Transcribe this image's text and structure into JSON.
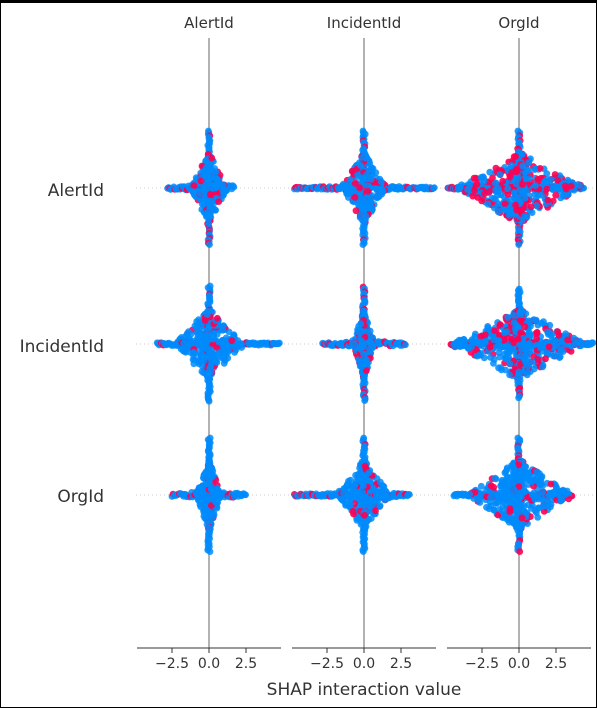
{
  "chart_data": {
    "type": "scatter",
    "subtype": "shap-interaction-summary-beeswarm",
    "xlabel": "SHAP interaction value",
    "column_features": [
      "AlertId",
      "IncidentId",
      "OrgId"
    ],
    "row_features": [
      "AlertId",
      "IncidentId",
      "OrgId"
    ],
    "x_ticks": [
      -2.5,
      0.0,
      2.5
    ],
    "x_tick_labels": [
      "−2.5",
      "0.0",
      "2.5"
    ],
    "xlim": [
      -4.8,
      5.0
    ],
    "colors": {
      "low_value": "#008bfb",
      "high_value": "#ff0052",
      "zero_line": "#999999",
      "axis": "#333333"
    },
    "panels": [
      {
        "row": "AlertId",
        "col": "AlertId",
        "x_range": [
          -2.8,
          1.7
        ],
        "spine_half_height": 57,
        "core_width": 0.9,
        "high_fraction": 0.2
      },
      {
        "row": "AlertId",
        "col": "IncidentId",
        "x_range": [
          -4.7,
          4.8
        ],
        "spine_half_height": 57,
        "core_width": 1.1,
        "high_fraction": 0.2
      },
      {
        "row": "AlertId",
        "col": "OrgId",
        "x_range": [
          -4.8,
          4.4
        ],
        "spine_half_height": 57,
        "core_width": 3.2,
        "high_fraction": 0.35
      },
      {
        "row": "IncidentId",
        "col": "AlertId",
        "x_range": [
          -3.5,
          4.8
        ],
        "spine_half_height": 58,
        "core_width": 1.7,
        "high_fraction": 0.1
      },
      {
        "row": "IncidentId",
        "col": "IncidentId",
        "x_range": [
          -2.8,
          2.8
        ],
        "spine_half_height": 57,
        "core_width": 0.5,
        "high_fraction": 0.25
      },
      {
        "row": "IncidentId",
        "col": "OrgId",
        "x_range": [
          -4.6,
          5.0
        ],
        "spine_half_height": 55,
        "core_width": 3.4,
        "high_fraction": 0.25
      },
      {
        "row": "OrgId",
        "col": "AlertId",
        "x_range": [
          -2.5,
          2.5
        ],
        "spine_half_height": 57,
        "core_width": 0.6,
        "high_fraction": 0.1
      },
      {
        "row": "OrgId",
        "col": "IncidentId",
        "x_range": [
          -4.7,
          3.1
        ],
        "spine_half_height": 57,
        "core_width": 1.3,
        "high_fraction": 0.12
      },
      {
        "row": "OrgId",
        "col": "OrgId",
        "x_range": [
          -4.4,
          3.6
        ],
        "spine_half_height": 57,
        "core_width": 2.6,
        "high_fraction": 0.12
      }
    ]
  }
}
